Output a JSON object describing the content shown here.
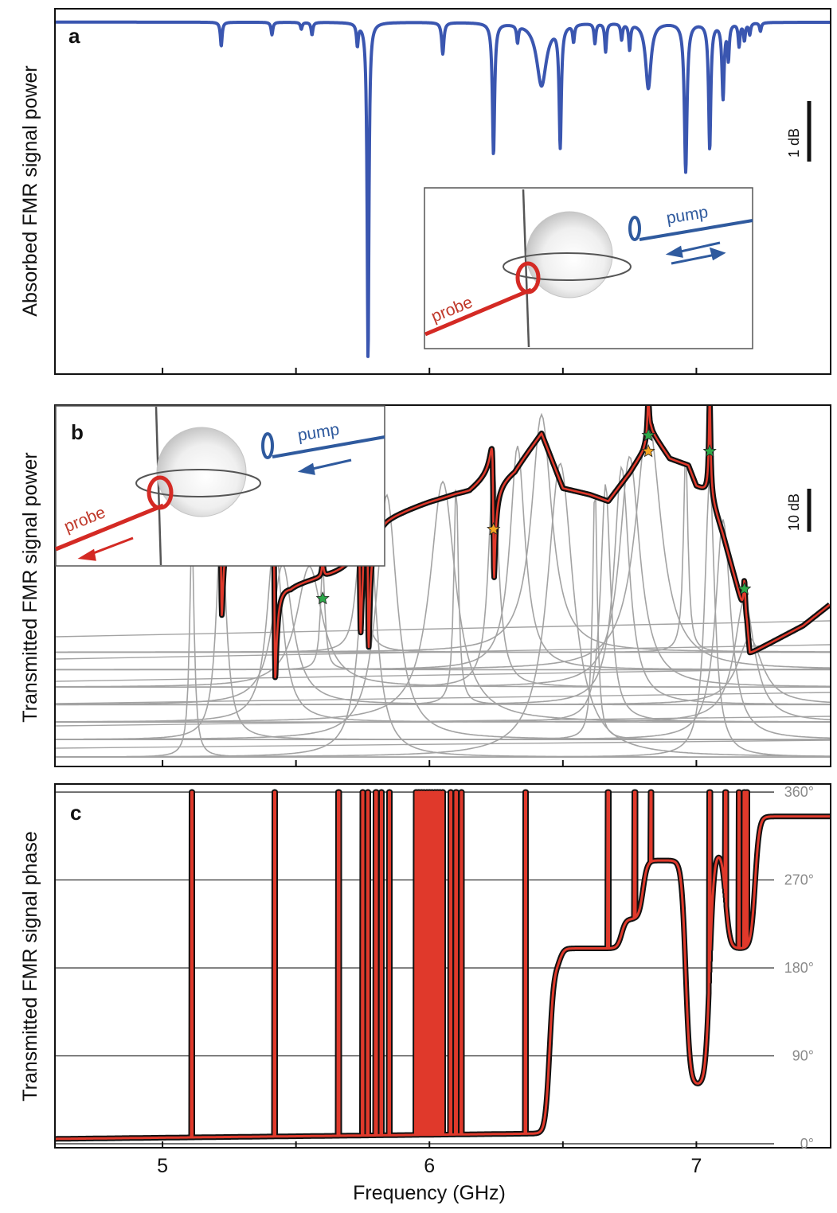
{
  "colors": {
    "absorbed": "#3a56b0",
    "measured": "#111111",
    "fit": "#e0392b",
    "components": "#a3a3a3",
    "star_green": "#2da84a",
    "star_orange": "#f5a623",
    "probe": "#d42a24",
    "pump": "#2f5a9e"
  },
  "xaxis": {
    "label": "Frequency (GHz)",
    "range": [
      4.6,
      7.5
    ],
    "ticks": [
      5,
      6,
      7
    ],
    "tick_labels": [
      "5",
      "6",
      "7"
    ],
    "minor_ticks": [
      5.5,
      6.5
    ]
  },
  "panels": {
    "a": {
      "letter": "a",
      "ylabel": "Absorbed FMR signal power",
      "scale_bar": "1 dB"
    },
    "b": {
      "letter": "b",
      "ylabel": "Transmitted FMR signal power",
      "scale_bar": "10 dB"
    },
    "c": {
      "letter": "c",
      "ylabel": "Transmitted FMR signal phase"
    }
  },
  "inset_a": {
    "probe_label": "probe",
    "pump_label": "pump"
  },
  "inset_b": {
    "probe_label": "probe",
    "pump_label": "pump"
  },
  "chart_data": [
    {
      "panel": "a",
      "type": "line",
      "title": "",
      "xlabel": "Frequency (GHz)",
      "ylabel": "Absorbed FMR signal power",
      "xlim": [
        4.6,
        7.5
      ],
      "ylim_db": [
        -6.0,
        0.15
      ],
      "baseline_db": 0,
      "dips": [
        {
          "f": 5.22,
          "depth": 0.42,
          "w": 0.004
        },
        {
          "f": 5.41,
          "depth": 0.22,
          "w": 0.004
        },
        {
          "f": 5.52,
          "depth": 0.12,
          "w": 0.004
        },
        {
          "f": 5.56,
          "depth": 0.22,
          "w": 0.004
        },
        {
          "f": 5.73,
          "depth": 0.38,
          "w": 0.004
        },
        {
          "f": 5.77,
          "depth": 5.9,
          "w": 0.004
        },
        {
          "f": 6.05,
          "depth": 0.55,
          "w": 0.005
        },
        {
          "f": 6.24,
          "depth": 2.3,
          "w": 0.005
        },
        {
          "f": 6.33,
          "depth": 0.3,
          "w": 0.004
        },
        {
          "f": 6.42,
          "depth": 1.1,
          "w": 0.022
        },
        {
          "f": 6.49,
          "depth": 2.1,
          "w": 0.005
        },
        {
          "f": 6.54,
          "depth": 0.3,
          "w": 0.004
        },
        {
          "f": 6.62,
          "depth": 0.35,
          "w": 0.004
        },
        {
          "f": 6.66,
          "depth": 0.5,
          "w": 0.004
        },
        {
          "f": 6.72,
          "depth": 0.28,
          "w": 0.004
        },
        {
          "f": 6.75,
          "depth": 0.45,
          "w": 0.004
        },
        {
          "f": 6.82,
          "depth": 1.15,
          "w": 0.012
        },
        {
          "f": 6.96,
          "depth": 2.6,
          "w": 0.006
        },
        {
          "f": 7.05,
          "depth": 2.2,
          "w": 0.005
        },
        {
          "f": 7.1,
          "depth": 1.3,
          "w": 0.005
        },
        {
          "f": 7.12,
          "depth": 0.6,
          "w": 0.004
        },
        {
          "f": 7.16,
          "depth": 0.4,
          "w": 0.004
        },
        {
          "f": 7.18,
          "depth": 0.3,
          "w": 0.004
        },
        {
          "f": 7.2,
          "depth": 0.2,
          "w": 0.004
        },
        {
          "f": 7.24,
          "depth": 0.15,
          "w": 0.004
        }
      ]
    },
    {
      "panel": "b",
      "type": "line",
      "title": "",
      "xlabel": "Frequency (GHz)",
      "ylabel": "Transmitted FMR signal power",
      "xlim": [
        4.6,
        7.5
      ],
      "ylim_db": [
        -41,
        10
      ],
      "series": [
        {
          "name": "measured",
          "x": [
            4.6,
            5.1,
            5.12,
            5.22,
            5.41,
            5.43,
            5.48,
            5.6,
            5.7,
            5.75,
            5.76,
            5.78,
            5.82,
            5.84,
            5.9,
            6.0,
            6.05,
            6.1,
            6.15,
            6.24,
            6.32,
            6.4,
            6.42,
            6.45,
            6.5,
            6.6,
            6.67,
            6.7,
            6.75,
            6.8,
            6.83,
            6.9,
            6.97,
            7.0,
            7.05,
            7.1,
            7.15,
            7.19,
            7.2,
            7.3,
            7.4,
            7.5
          ],
          "y": [
            -11,
            -10,
            -9,
            -8,
            -7,
            -14,
            -15,
            -14.5,
            -14,
            -12,
            -4,
            -5,
            -4.8,
            -4.5,
            -4,
            -3,
            -2.6,
            -2.2,
            -2,
            0.2,
            2,
            6,
            7,
            4,
            -1,
            -2,
            -3,
            -1.5,
            1,
            4,
            7,
            3,
            2,
            -1,
            -2,
            -8,
            -15,
            -21,
            -25,
            -23,
            -21,
            -18
          ]
        },
        {
          "name": "fit",
          "x": [
            4.6,
            5.1,
            5.12,
            5.22,
            5.41,
            5.43,
            5.48,
            5.6,
            5.7,
            5.75,
            5.76,
            5.78,
            5.82,
            5.84,
            5.9,
            6.0,
            6.05,
            6.1,
            6.15,
            6.24,
            6.32,
            6.4,
            6.42,
            6.45,
            6.5,
            6.6,
            6.67,
            6.7,
            6.75,
            6.8,
            6.83,
            6.9,
            6.97,
            7.0,
            7.05,
            7.1,
            7.15,
            7.19,
            7.2,
            7.3,
            7.4,
            7.5
          ],
          "y": [
            -11,
            -10,
            -9,
            -8,
            -7,
            -14,
            -15,
            -14.5,
            -14,
            -12,
            -4,
            -5,
            -4.8,
            -4.5,
            -4,
            -3,
            -2.6,
            -2.2,
            -2,
            0.2,
            2,
            6,
            7,
            4,
            -1,
            -2,
            -3,
            -1.5,
            1,
            4,
            7,
            3,
            2,
            -1,
            -2,
            -8,
            -15,
            -21,
            -25,
            -23,
            -21,
            -18
          ]
        }
      ],
      "modes": [
        {
          "f": 5.11,
          "dir": "both",
          "amp": 2
        },
        {
          "f": 5.22,
          "dir": "both",
          "amp": 14,
          "star": "orange"
        },
        {
          "f": 5.42,
          "dir": "both",
          "amp": 20,
          "star": "green-orange"
        },
        {
          "f": 5.6,
          "dir": "up",
          "amp": 2,
          "star": "green"
        },
        {
          "f": 5.74,
          "dir": "both",
          "amp": 14,
          "star": "green"
        },
        {
          "f": 5.77,
          "dir": "both",
          "amp": 20
        },
        {
          "f": 6.24,
          "dir": "both",
          "amp": 16,
          "star": "orange"
        },
        {
          "f": 6.82,
          "dir": "up",
          "amp": 6,
          "star": "green-orange"
        },
        {
          "f": 7.05,
          "dir": "up",
          "amp": 14,
          "star": "green"
        },
        {
          "f": 7.18,
          "dir": "up",
          "amp": 5,
          "star": "green"
        }
      ],
      "stars": [
        {
          "f": 5.22,
          "color": "orange"
        },
        {
          "f": 5.45,
          "color": "green"
        },
        {
          "f": 5.45,
          "color": "orange"
        },
        {
          "f": 5.6,
          "color": "green"
        },
        {
          "f": 5.74,
          "color": "green"
        },
        {
          "f": 6.24,
          "color": "orange"
        },
        {
          "f": 6.82,
          "color": "green"
        },
        {
          "f": 6.82,
          "color": "orange"
        },
        {
          "f": 7.05,
          "color": "green"
        },
        {
          "f": 7.18,
          "color": "green"
        }
      ],
      "component_centers": [
        5.11,
        5.22,
        5.42,
        5.45,
        5.55,
        5.6,
        5.74,
        5.77,
        5.84,
        6.05,
        6.1,
        6.24,
        6.33,
        6.42,
        6.49,
        6.62,
        6.66,
        6.72,
        6.75,
        6.82,
        6.96,
        7.05,
        7.1,
        7.18,
        7.2
      ]
    },
    {
      "panel": "c",
      "type": "line",
      "title": "",
      "xlabel": "Frequency (GHz)",
      "ylabel": "Transmitted FMR signal phase",
      "xlim": [
        4.6,
        7.5
      ],
      "ylim_deg": [
        0,
        365
      ],
      "yticks": [
        0,
        90,
        180,
        270,
        360
      ],
      "ytick_labels": [
        "0°",
        "90°",
        "180°",
        "270°",
        "360°"
      ],
      "wraps": [
        5.11,
        5.42,
        5.66,
        5.75,
        5.77,
        5.8,
        5.82,
        5.85,
        5.95,
        5.96,
        5.97,
        5.98,
        5.99,
        6.0,
        6.01,
        6.02,
        6.03,
        6.04,
        6.05,
        6.08,
        6.1,
        6.12,
        6.36,
        6.67,
        6.77,
        6.83,
        7.05,
        7.11,
        7.16,
        7.18,
        7.19
      ],
      "phase_steps": [
        {
          "f": 6.45,
          "to": 180
        },
        {
          "f": 6.49,
          "to": 200
        },
        {
          "f": 6.72,
          "to": 230
        },
        {
          "f": 6.8,
          "to": 290
        },
        {
          "f": 6.96,
          "to": 60
        },
        {
          "f": 7.05,
          "to": 300
        },
        {
          "f": 7.11,
          "to": 200
        },
        {
          "f": 7.22,
          "to": 335
        }
      ]
    }
  ]
}
